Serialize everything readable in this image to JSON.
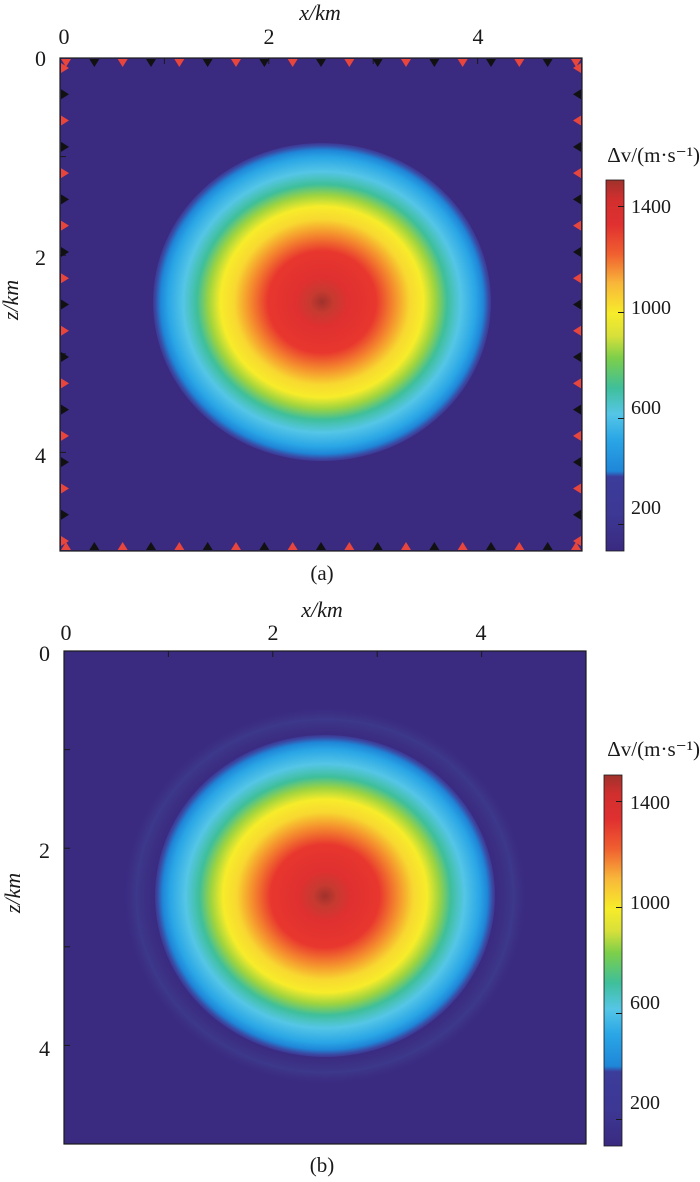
{
  "colors": {
    "colormap": [
      "#3a2a80",
      "#3c3894",
      "#1f86d8",
      "#2aa6e6",
      "#55c6e6",
      "#3fbf9a",
      "#7ccf4a",
      "#d8e03a",
      "#f7ec2a",
      "#f8b83a",
      "#f06030",
      "#e03030",
      "#a0322c"
    ],
    "source_marker": "#e8453c",
    "receiver_marker": "#111111"
  },
  "chart_data": [
    {
      "type": "heatmap",
      "panel": "(a)",
      "xlabel": "x/km",
      "ylabel": "z/km",
      "x_ticks": [
        "0",
        "2",
        "4"
      ],
      "y_ticks": [
        "0",
        "2",
        "4"
      ],
      "xlim": [
        0,
        5
      ],
      "ylim": [
        5,
        0
      ],
      "field": {
        "kind": "gaussian-anomaly",
        "center_km": [
          2.5,
          2.5
        ],
        "background": 100,
        "peak": 1500,
        "contour_levels_m_per_s": [
          200,
          400,
          600,
          800,
          1000,
          1200,
          1400
        ]
      },
      "colorbar": {
        "title": "Δv/(m·s⁻¹)",
        "ticks": [
          "1400",
          "1000",
          "600",
          "200"
        ],
        "range": [
          100,
          1500
        ]
      },
      "markers": "sources (red triangles) and receivers (black triangles) along all four boundaries"
    },
    {
      "type": "heatmap",
      "panel": "(b)",
      "xlabel": "x/km",
      "ylabel": "z/km",
      "x_ticks": [
        "0",
        "2",
        "4"
      ],
      "y_ticks": [
        "0",
        "2",
        "4"
      ],
      "xlim": [
        0,
        5
      ],
      "ylim": [
        5,
        0
      ],
      "field": {
        "kind": "gaussian-anomaly",
        "center_km": [
          2.5,
          2.5
        ],
        "background": 100,
        "peak": 1500,
        "contour_levels_m_per_s": [
          200,
          400,
          600,
          800,
          1000,
          1200,
          1400
        ]
      },
      "colorbar": {
        "title": "Δv/(m·s⁻¹)",
        "ticks": [
          "1400",
          "1000",
          "600",
          "200"
        ],
        "range": [
          100,
          1500
        ]
      }
    }
  ]
}
